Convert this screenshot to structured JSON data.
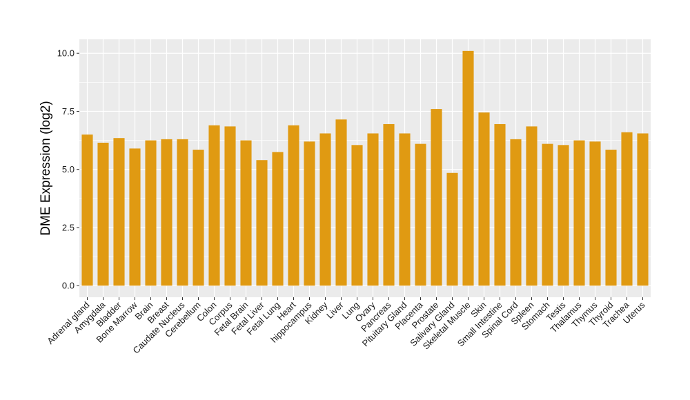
{
  "chart_data": {
    "type": "bar",
    "title": "",
    "xlabel": "",
    "ylabel": "DME Expression (log2)",
    "ylim": [
      -0.5,
      10.6
    ],
    "yticks": [
      0.0,
      2.5,
      5.0,
      7.5,
      10.0
    ],
    "ytick_labels": [
      "0.0",
      "2.5",
      "5.0",
      "7.5",
      "10.0"
    ],
    "grid": true,
    "legend": "none",
    "bar_color": "#E09A12",
    "panel_color": "#EBEBEB",
    "grid_color": "#FFFFFF",
    "categories": [
      "Adrenal gland",
      "Amygdala",
      "Bladder",
      "Bone Marrow",
      "Brain",
      "Breast",
      "Caudate Nucleus",
      "Cerebellum",
      "Colon",
      "Corpus",
      "Fetal Brain",
      "Fetal Liver",
      "Fetal Lung",
      "Heart",
      "hippocampus",
      "Kidney",
      "Liver",
      "Lung",
      "Ovary",
      "Pancreas",
      "Pituitary Gland",
      "Placenta",
      "Prostate",
      "Salivary Gland",
      "Skeletal Muscle",
      "Skin",
      "Small Intestine",
      "Spinal Cord",
      "Spleen",
      "Stomach",
      "Testis",
      "Thalamus",
      "Thymus",
      "Thyroid",
      "Trachea",
      "Uterus"
    ],
    "values": [
      6.5,
      6.15,
      6.35,
      5.9,
      6.25,
      6.3,
      6.3,
      5.85,
      6.9,
      6.85,
      6.25,
      5.4,
      5.75,
      6.9,
      6.2,
      6.55,
      7.15,
      6.05,
      6.55,
      6.95,
      6.55,
      6.1,
      7.6,
      4.85,
      10.1,
      7.45,
      6.95,
      6.3,
      6.85,
      6.1,
      6.05,
      6.25,
      6.2,
      5.85,
      6.6,
      6.55
    ]
  }
}
